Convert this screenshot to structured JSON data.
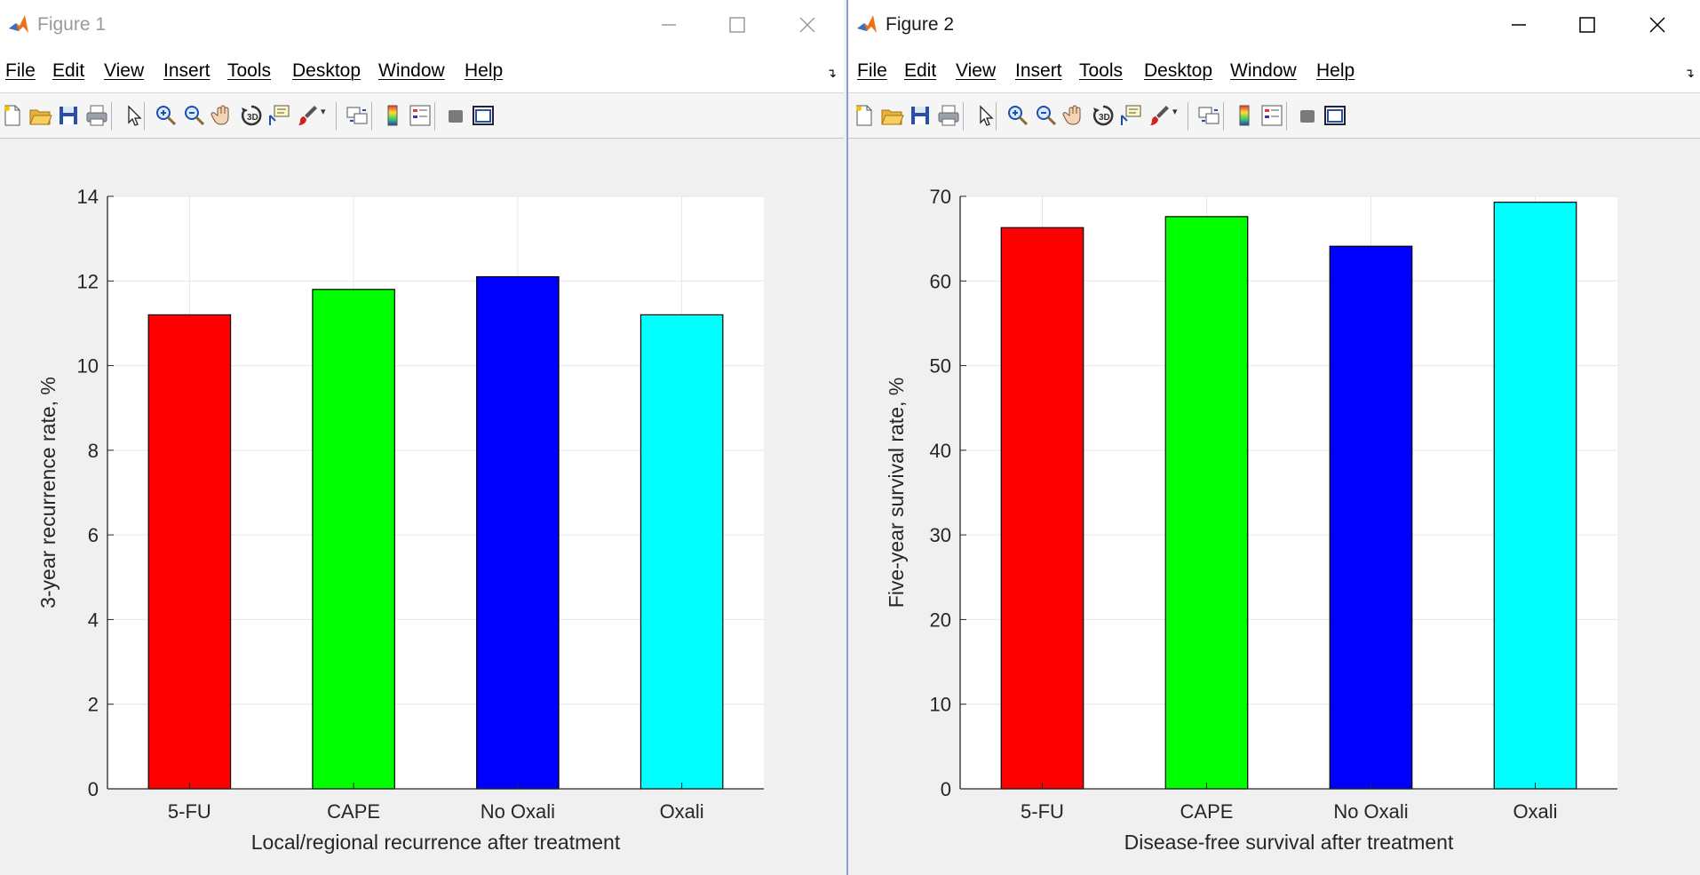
{
  "windows": [
    {
      "title": "Figure 1",
      "active": false,
      "menus": [
        "File",
        "Edit",
        "View",
        "Insert",
        "Tools",
        "Desktop",
        "Window",
        "Help"
      ],
      "chart_data": {
        "type": "bar",
        "categories": [
          "5-FU",
          "CAPE",
          "No Oxali",
          "Oxali"
        ],
        "values": [
          11.2,
          11.8,
          12.1,
          11.2
        ],
        "colors": [
          "#ff0000",
          "#00ff00",
          "#0000ff",
          "#00ffff"
        ],
        "title": "",
        "xlabel": "Local/regional recurrence after treatment",
        "ylabel": "3-year recurrence rate, %",
        "ylim": [
          0,
          14
        ],
        "yticks": [
          "0",
          "2",
          "4",
          "6",
          "8",
          "10",
          "12",
          "14"
        ],
        "grid": true
      }
    },
    {
      "title": "Figure 2",
      "active": true,
      "menus": [
        "File",
        "Edit",
        "View",
        "Insert",
        "Tools",
        "Desktop",
        "Window",
        "Help"
      ],
      "chart_data": {
        "type": "bar",
        "categories": [
          "5-FU",
          "CAPE",
          "No Oxali",
          "Oxali"
        ],
        "values": [
          66.3,
          67.6,
          64.1,
          69.3
        ],
        "colors": [
          "#ff0000",
          "#00ff00",
          "#0000ff",
          "#00ffff"
        ],
        "title": "",
        "xlabel": "Disease-free survival after treatment",
        "ylabel": "Five-year survival rate, %",
        "ylim": [
          0,
          70
        ],
        "yticks": [
          "0",
          "10",
          "20",
          "30",
          "40",
          "50",
          "60",
          "70"
        ],
        "grid": true
      }
    }
  ],
  "toolbar_icons": [
    "new-figure-icon",
    "open-file-icon",
    "save-icon",
    "print-icon",
    "select-pointer-icon",
    "zoom-in-icon",
    "zoom-out-icon",
    "pan-hand-icon",
    "rotate-3d-icon",
    "data-cursor-icon",
    "brush-icon",
    "link-plot-icon",
    "colorbar-icon",
    "legend-icon",
    "hide-plot-tools-icon",
    "show-plot-tools-icon"
  ],
  "window_controls": [
    "minimize-icon",
    "maximize-icon",
    "close-icon"
  ],
  "chart_data": [
    {
      "type": "bar",
      "categories": [
        "5-FU",
        "CAPE",
        "No Oxali",
        "Oxali"
      ],
      "values": [
        11.2,
        11.8,
        12.1,
        11.2
      ],
      "xlabel": "Local/regional recurrence after treatment",
      "ylabel": "3-year recurrence rate, %",
      "ylim": [
        0,
        14
      ],
      "grid": true
    },
    {
      "type": "bar",
      "categories": [
        "5-FU",
        "CAPE",
        "No Oxali",
        "Oxali"
      ],
      "values": [
        66.3,
        67.6,
        64.1,
        69.3
      ],
      "xlabel": "Disease-free survival after treatment",
      "ylabel": "Five-year survival rate, %",
      "ylim": [
        0,
        70
      ],
      "grid": true
    }
  ]
}
